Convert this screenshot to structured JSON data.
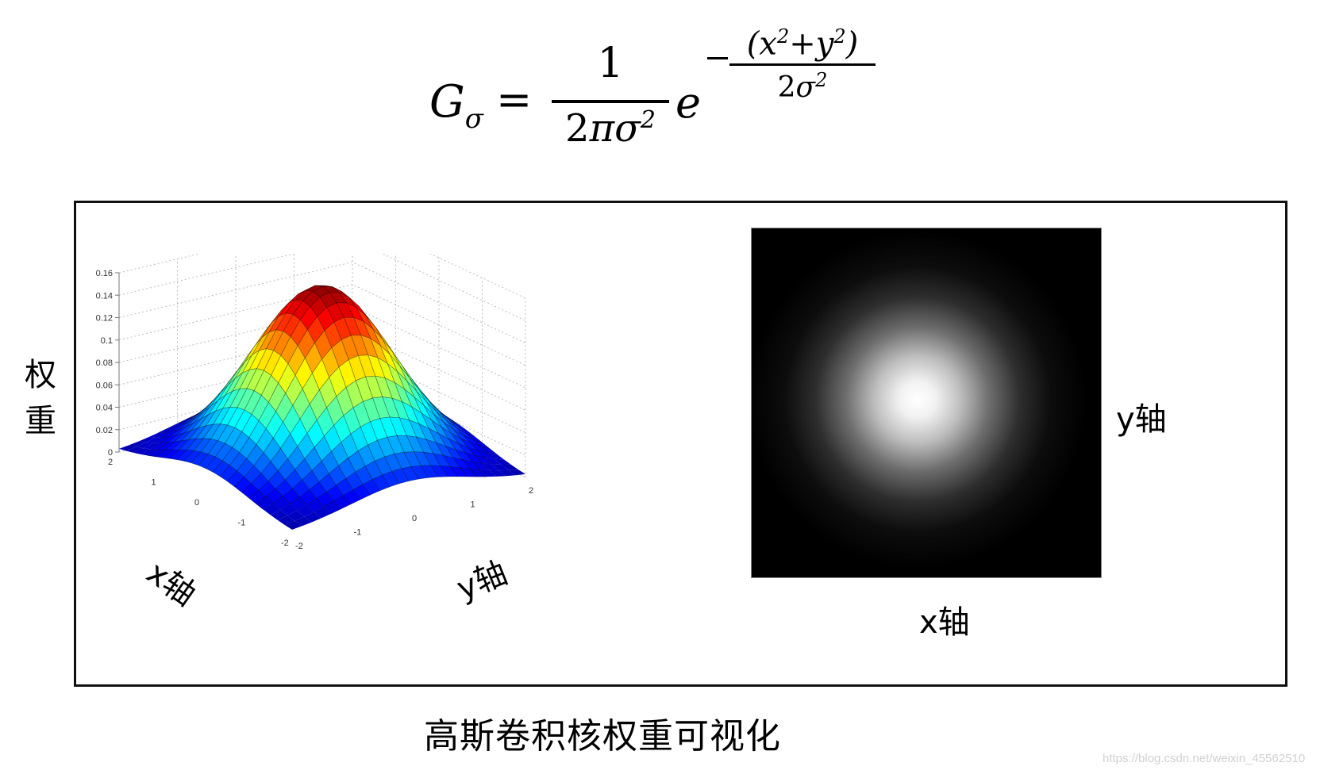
{
  "formula": {
    "lhs": "G",
    "lhs_subscript": "σ",
    "equals": "=",
    "numerator": "1",
    "denominator": "2πσ",
    "denominator_exp": "2",
    "base": "e",
    "exponent_numerator_prefix": "(x",
    "exponent_numerator_exp1": "2",
    "exponent_numerator_mid": "+y",
    "exponent_numerator_exp2": "2",
    "exponent_numerator_suffix": ")",
    "exponent_denominator": "2σ",
    "exponent_denominator_exp": "2",
    "latex": "G_\\sigma = \\frac{1}{2\\pi\\sigma^2} e^{-\\frac{(x^2+y^2)}{2\\sigma^2}}"
  },
  "left_panel": {
    "vertical_label_1": "权",
    "vertical_label_2": "重",
    "x_axis_label": "x轴",
    "y_axis_label": "y轴"
  },
  "right_panel": {
    "y_axis_label": "y轴",
    "x_axis_label": "x轴"
  },
  "caption": "高斯卷积核权重可视化",
  "watermark": "https://blog.csdn.net/weixin_45562510",
  "chart_data": [
    {
      "type": "surface3d",
      "title": "",
      "xlabel": "x轴",
      "ylabel": "y轴",
      "zlabel": "权重",
      "x_ticks": [
        "-2",
        "-1",
        "0",
        "1",
        "2"
      ],
      "y_ticks": [
        "-2",
        "-1",
        "0",
        "1",
        "2"
      ],
      "z_ticks": [
        "0",
        "0.02",
        "0.04",
        "0.06",
        "0.08",
        "0.1",
        "0.12",
        "0.14",
        "0.16"
      ],
      "xlim": [
        -2,
        2
      ],
      "ylim": [
        -2,
        2
      ],
      "zlim": [
        0,
        0.16
      ],
      "function": "1/(2*pi*sigma^2) * exp(-(x^2+y^2)/(2*sigma^2))",
      "sigma": 1,
      "peak_value": 0.159,
      "colormap": "jet",
      "grid": true
    },
    {
      "type": "heatmap",
      "title": "",
      "xlabel": "x轴",
      "ylabel": "y轴",
      "colormap": "gray",
      "description": "2D Gaussian kernel weights, bright at center fading to black at edges"
    }
  ]
}
